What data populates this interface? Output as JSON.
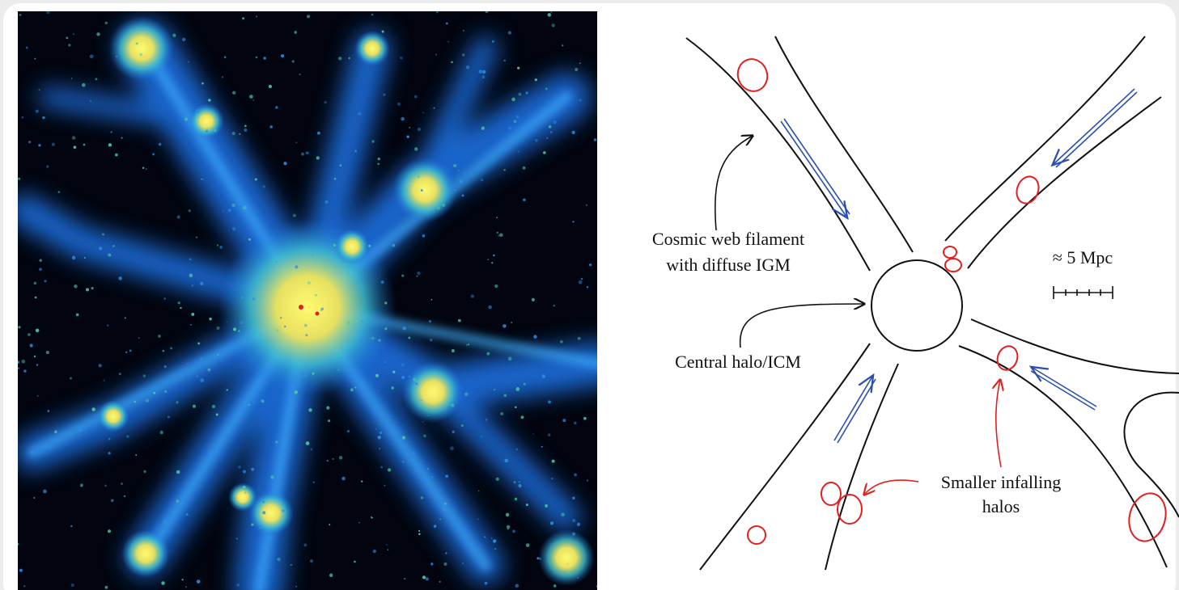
{
  "filament_label": [
    "Cosmic web filament",
    "with diffuse IGM"
  ],
  "halo_label": "Central halo/ICM",
  "scale_label": "≈ 5 Mpc",
  "infall_label": [
    "Smaller infalling",
    "halos"
  ]
}
